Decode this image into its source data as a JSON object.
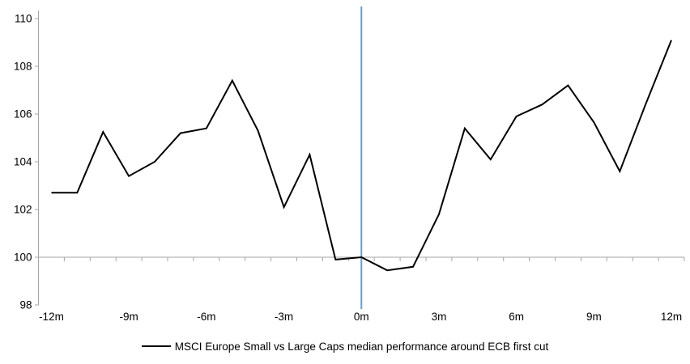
{
  "chart_data": {
    "type": "line",
    "title": "",
    "categories": [
      "-12m",
      "-11m",
      "-10m",
      "-9m",
      "-8m",
      "-7m",
      "-6m",
      "-5m",
      "-4m",
      "-3m",
      "-2m",
      "-1m",
      "0m",
      "1m",
      "2m",
      "3m",
      "4m",
      "5m",
      "6m",
      "7m",
      "8m",
      "9m",
      "10m",
      "11m",
      "12m"
    ],
    "x_label_every": 3,
    "series": [
      {
        "name": "MSCI Europe Small vs Large Caps median performance around ECB first cut",
        "color": "#000000",
        "values": [
          102.7,
          102.7,
          105.25,
          103.4,
          104.0,
          105.2,
          105.4,
          107.4,
          105.3,
          102.1,
          104.3,
          99.9,
          100.0,
          99.45,
          99.6,
          101.8,
          105.4,
          104.1,
          105.9,
          106.4,
          107.2,
          105.65,
          103.6,
          106.4,
          109.1
        ]
      }
    ],
    "y_ticks": [
      98,
      100,
      102,
      104,
      106,
      108,
      110
    ],
    "ylim": [
      98,
      110
    ],
    "baseline": 100,
    "event_line": {
      "category": "0m",
      "color": "#6D9EC8",
      "meaning": "ECB first cut"
    },
    "legend_position": "bottom",
    "grid": "off",
    "axis_color": "#A6A6A6",
    "label_color": "#000000"
  }
}
